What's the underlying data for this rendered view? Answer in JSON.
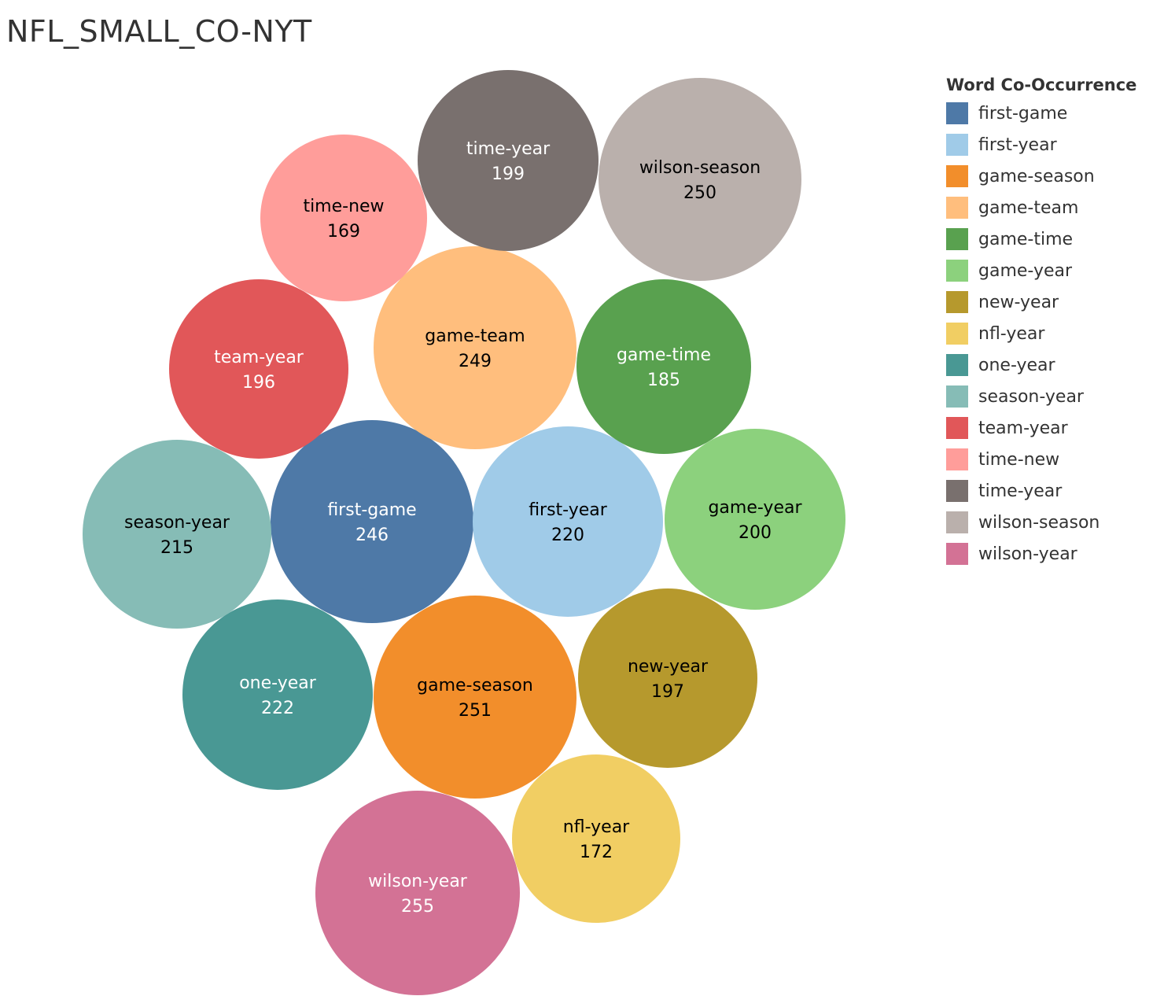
{
  "chart_data": {
    "type": "bubble",
    "title": "NFL_SMALL_CO-NYT",
    "legend_title": "Word Co-Occurrence",
    "legend_position": "right",
    "series": [
      {
        "name": "first-game",
        "value": 246,
        "color": "#4E79A7",
        "text_color": "#ffffff"
      },
      {
        "name": "first-year",
        "value": 220,
        "color": "#A0CBE8",
        "text_color": "#000000"
      },
      {
        "name": "game-season",
        "value": 251,
        "color": "#F28E2B",
        "text_color": "#000000"
      },
      {
        "name": "game-team",
        "value": 249,
        "color": "#FFBE7D",
        "text_color": "#000000"
      },
      {
        "name": "game-time",
        "value": 185,
        "color": "#59A14F",
        "text_color": "#ffffff"
      },
      {
        "name": "game-year",
        "value": 200,
        "color": "#8CD17D",
        "text_color": "#000000"
      },
      {
        "name": "new-year",
        "value": 197,
        "color": "#B6992D",
        "text_color": "#000000"
      },
      {
        "name": "nfl-year",
        "value": 172,
        "color": "#F1CE63",
        "text_color": "#000000"
      },
      {
        "name": "one-year",
        "value": 222,
        "color": "#499894",
        "text_color": "#ffffff"
      },
      {
        "name": "season-year",
        "value": 215,
        "color": "#86BCB6",
        "text_color": "#000000"
      },
      {
        "name": "team-year",
        "value": 196,
        "color": "#E15759",
        "text_color": "#ffffff"
      },
      {
        "name": "time-new",
        "value": 169,
        "color": "#FF9D9A",
        "text_color": "#000000"
      },
      {
        "name": "time-year",
        "value": 199,
        "color": "#79706E",
        "text_color": "#ffffff"
      },
      {
        "name": "wilson-season",
        "value": 250,
        "color": "#BAB0AC",
        "text_color": "#000000"
      },
      {
        "name": "wilson-year",
        "value": 255,
        "color": "#D37295",
        "text_color": "#ffffff"
      }
    ]
  }
}
